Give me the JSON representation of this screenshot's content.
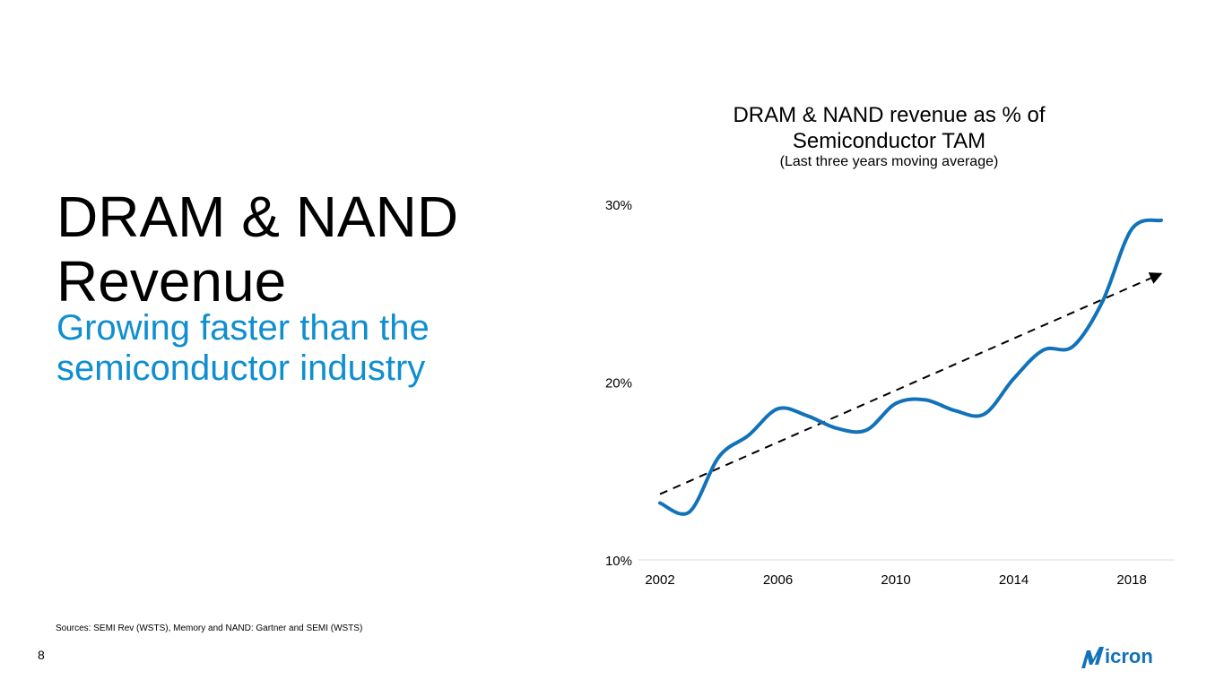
{
  "slide": {
    "title_line1": "DRAM & NAND",
    "title_line2": "Revenue",
    "subtitle_line1": "Growing faster than the",
    "subtitle_line2": "semiconductor industry",
    "sources": "Sources: SEMI Rev (WSTS), Memory and NAND: Gartner and SEMI (WSTS)",
    "page_number": "8",
    "logo_text": "Micron"
  },
  "colors": {
    "series": "#1272b9",
    "trend": "#000000",
    "subtitle": "#0f8ed0",
    "axis": "#d9d9d9"
  },
  "chart_data": {
    "type": "line",
    "title_line1": "DRAM & NAND revenue as % of",
    "title_line2": "Semiconductor TAM",
    "subtitle": "(Last three years moving average)",
    "xlabel": "",
    "ylabel": "",
    "xlim": [
      2002,
      2019
    ],
    "ylim": [
      10,
      30
    ],
    "x_ticks": [
      2002,
      2006,
      2010,
      2014,
      2018
    ],
    "x_tick_labels": [
      "2002",
      "2006",
      "2010",
      "2014",
      "2018"
    ],
    "y_ticks": [
      10,
      20,
      30
    ],
    "y_tick_labels": [
      "10%",
      "20%",
      "30%"
    ],
    "grid": false,
    "series": [
      {
        "style": "solid",
        "x": [
          2002,
          2003,
          2004,
          2005,
          2006,
          2007,
          2008,
          2009,
          2010,
          2011,
          2012,
          2013,
          2014,
          2015,
          2016,
          2017,
          2018,
          2019
        ],
        "y": [
          13.2,
          12.7,
          15.8,
          17.0,
          18.5,
          18.1,
          17.4,
          17.3,
          18.8,
          19.0,
          18.4,
          18.2,
          20.2,
          21.8,
          22.0,
          24.5,
          28.6,
          29.1
        ]
      },
      {
        "style": "dashed",
        "x": [
          2002,
          2019
        ],
        "y": [
          13.7,
          26.1
        ]
      }
    ]
  }
}
